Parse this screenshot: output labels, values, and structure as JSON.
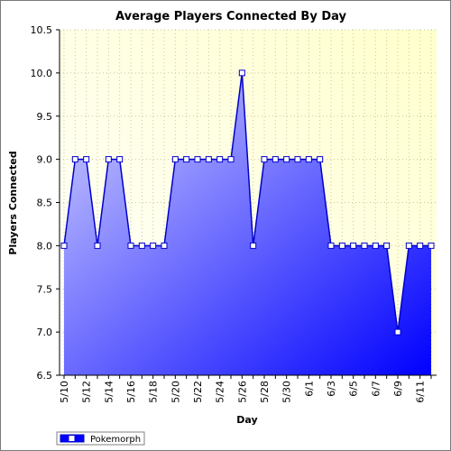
{
  "chart_data": {
    "type": "area",
    "title": "Average Players Connected By Day",
    "xlabel": "Day",
    "ylabel": "Players Connected",
    "ylim": [
      6.5,
      10.5
    ],
    "yticks": [
      "6.5",
      "7.0",
      "7.5",
      "8.0",
      "8.5",
      "9.0",
      "9.5",
      "10.0",
      "10.5"
    ],
    "xtick_labels": [
      "5/10",
      "5/12",
      "5/14",
      "5/16",
      "5/18",
      "5/20",
      "5/22",
      "5/24",
      "5/26",
      "5/28",
      "5/30",
      "6/1",
      "6/3",
      "6/5",
      "6/7",
      "6/9",
      "6/11"
    ],
    "x": [
      "5/10",
      "5/11",
      "5/12",
      "5/13",
      "5/14",
      "5/15",
      "5/16",
      "5/17",
      "5/18",
      "5/19",
      "5/20",
      "5/21",
      "5/22",
      "5/23",
      "5/24",
      "5/25",
      "5/26",
      "5/27",
      "5/28",
      "5/29",
      "5/30",
      "5/31",
      "6/1",
      "6/2",
      "6/3",
      "6/4",
      "6/5",
      "6/6",
      "6/7",
      "6/8",
      "6/9",
      "6/10",
      "6/11",
      "6/12"
    ],
    "series": [
      {
        "name": "Pokemorph",
        "values": [
          8,
          9,
          9,
          8,
          9,
          9,
          8,
          8,
          8,
          8,
          9,
          9,
          9,
          9,
          9,
          9,
          10,
          8,
          9,
          9,
          9,
          9,
          9,
          9,
          8,
          8,
          8,
          8,
          8,
          8,
          7,
          8,
          8,
          8
        ]
      }
    ],
    "grid": true,
    "legend_position": "bottom-left",
    "colors": {
      "plot_bg_top_right": "#ffffcc",
      "plot_bg_bottom_left": "#ffffff",
      "area_light": "#c8c8ff",
      "area_dark": "#0000ff",
      "line": "#0000cc",
      "grid": "#c8c8a0"
    }
  }
}
